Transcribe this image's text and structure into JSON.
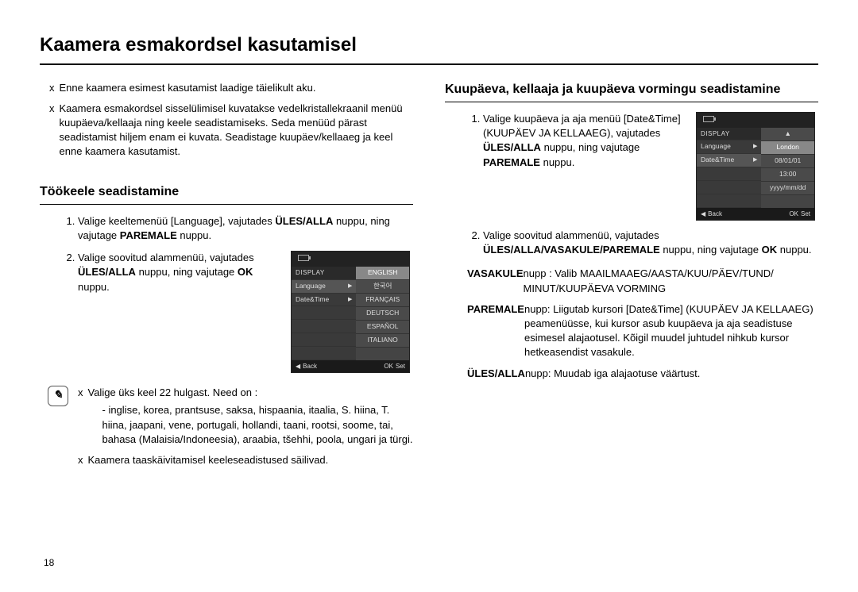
{
  "page_title": "Kaamera esmakordsel kasutamisel",
  "page_number": "18",
  "intro": [
    "Enne kaamera esimest kasutamist laadige täielikult aku.",
    "Kaamera esmakordsel sisselülimisel kuvatakse vedelkristallekraanil menüü kuupäeva/kellaaja ning keele seadistamiseks. Seda menüüd pärast seadistamist hiljem enam ei kuvata. Seadistage kuupäev/kellaaeg ja keel enne kaamera kasutamist."
  ],
  "left": {
    "heading": "Töökeele seadistamine",
    "step1_pre": "Valige keeltemenüü [Language], vajutades ",
    "step1_b1": "ÜLES/ALLA",
    "step1_mid": " nuppu, ning vajutage ",
    "step1_b2": "PAREMALE",
    "step1_post": " nuppu.",
    "step2_pre": "Valige soovitud alammenüü, vajutades ",
    "step2_b1": "ÜLES/ALLA",
    "step2_mid": " nuppu, ning vajutage ",
    "step2_b2": "OK",
    "step2_post": " nuppu.",
    "lcd": {
      "header": "DISPLAY",
      "rows_left": [
        "Language",
        "Date&Time"
      ],
      "rows_right": [
        "ENGLISH",
        "한국어",
        "FRANÇAIS",
        "DEUTSCH",
        "ESPAÑOL",
        "ITALIANO"
      ],
      "back": "Back",
      "set": "Set",
      "ok": "OK"
    },
    "note1": "Valige üks keel 22 hulgast. Need on :",
    "note1_sub": "- inglise, korea, prantsuse, saksa, hispaania, itaalia, S. hiina, T. hiina, jaapani, vene, portugali, hollandi, taani, rootsi, soome, tai, bahasa (Malaisia/Indoneesia), araabia, tšehhi, poola, ungari ja türgi.",
    "note2": "Kaamera taaskäivitamisel keeleseadistused säilivad."
  },
  "right": {
    "heading": "Kuupäeva, kellaaja ja kuupäeva vormingu seadistamine",
    "step1_pre": "Valige kuupäeva ja aja menüü [Date&Time] (KUUPÄEV JA KELLAAEG), vajutades ",
    "step1_b1": "ÜLES/ALLA",
    "step1_mid": " nuppu, ning vajutage ",
    "step1_b2": "PAREMALE",
    "step1_post": " nuppu.",
    "step2_pre": "Valige soovitud alammenüü, vajutades ",
    "step2_b1": "ÜLES/ALLA/VASAKULE/PAREMALE",
    "step2_mid": " nuppu, ning vajutage ",
    "step2_b2": "OK",
    "step2_post": " nuppu.",
    "lcd": {
      "header": "DISPLAY",
      "rows_left": [
        "Language",
        "Date&Time"
      ],
      "rows_right_top": "▲",
      "rows_right": [
        "London",
        "08/01/01",
        "13:00",
        "yyyy/mm/dd"
      ],
      "back": "Back",
      "set": "Set",
      "ok": "OK"
    },
    "def1_label": "VASAKULE",
    "def1_text": " nupp : Valib MAAILMAAEG/AASTA/KUU/PÄEV/TUND/ MINUT/KUUPÄEVA VORMING",
    "def2_label": "PAREMALE",
    "def2_text": " nupp: Liigutab kursori [Date&Time] (KUUPÄEV JA KELLAAEG) peamenüüsse, kui kursor asub kuupäeva ja aja seadistuse esimesel alajaotusel. Kõigil muudel juhtudel nihkub kursor hetkeasendist vasakule.",
    "def3_label": "ÜLES/ALLA",
    "def3_text": " nupp: Muudab iga alajaotuse väärtust."
  }
}
